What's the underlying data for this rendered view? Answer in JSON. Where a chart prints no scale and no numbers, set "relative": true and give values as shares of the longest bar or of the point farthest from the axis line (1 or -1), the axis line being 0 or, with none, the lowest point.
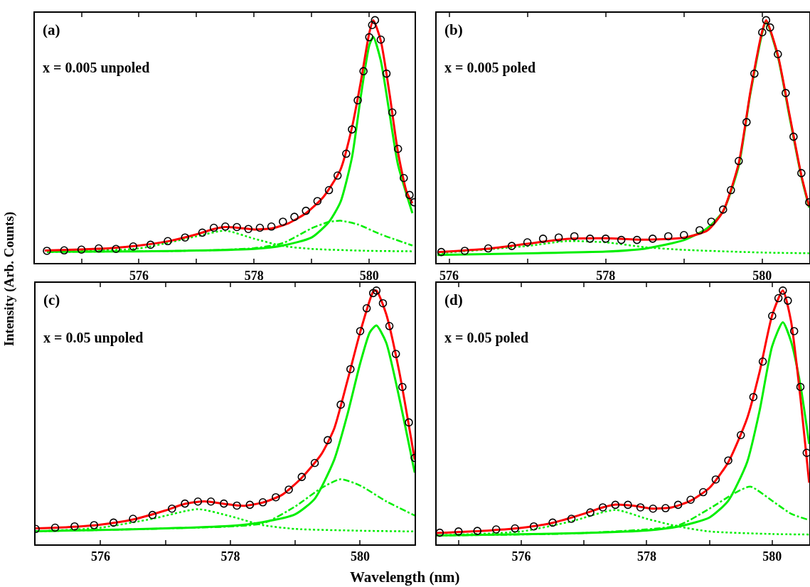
{
  "chart_data": [
    {
      "type": "line",
      "relative": true,
      "tick_labels": "x",
      "ylabel": "Intensity (Arb. Counts)",
      "xlim": [
        574.19,
        580.79
      ],
      "xticks": [
        {
          "value": 575,
          "label": null
        },
        576,
        {
          "value": 577,
          "label": null
        },
        578,
        {
          "value": 579,
          "label": null
        },
        580
      ],
      "annotations": [
        "(a)",
        "x = 0.005 unpoled"
      ],
      "series": [
        {
          "type": "scatter",
          "marker": "circle",
          "color": "#000000",
          "x": [
            574.4,
            574.7,
            575.0,
            575.3,
            575.6,
            575.9,
            576.2,
            576.5,
            576.8,
            577.1,
            577.3,
            577.5,
            577.7,
            577.9,
            578.1,
            578.3,
            578.5,
            578.7,
            578.9,
            579.1,
            579.3,
            579.45,
            579.6,
            579.7,
            579.8,
            579.9,
            580.0,
            580.05,
            580.1,
            580.2,
            580.3,
            580.4,
            580.5,
            580.6,
            580.7,
            580.78
          ],
          "values": [
            0.05,
            0.052,
            0.055,
            0.06,
            0.058,
            0.068,
            0.075,
            0.09,
            0.105,
            0.125,
            0.145,
            0.15,
            0.148,
            0.14,
            0.145,
            0.15,
            0.17,
            0.19,
            0.215,
            0.255,
            0.3,
            0.36,
            0.45,
            0.55,
            0.67,
            0.79,
            0.93,
            0.98,
            1.0,
            0.92,
            0.78,
            0.62,
            0.47,
            0.35,
            0.28,
            0.25
          ]
        },
        {
          "type": "line",
          "line_style": "solid",
          "color": "#00ee00",
          "x": [
            574.4,
            576.0,
            577.0,
            578.0,
            578.5,
            579.0,
            579.3,
            579.5,
            579.7,
            579.85,
            580.0,
            580.07,
            580.2,
            580.35,
            580.5,
            580.75
          ],
          "values": [
            0.046,
            0.048,
            0.051,
            0.058,
            0.072,
            0.105,
            0.169,
            0.251,
            0.435,
            0.681,
            0.896,
            0.931,
            0.834,
            0.619,
            0.404,
            0.205
          ]
        },
        {
          "type": "line",
          "line_style": "dashdot",
          "color": "#00ee00",
          "x": [
            574.4,
            577.0,
            578.0,
            578.5,
            579.0,
            579.3,
            579.5,
            579.8,
            580.2,
            580.75
          ],
          "values": [
            0.046,
            0.051,
            0.061,
            0.082,
            0.143,
            0.169,
            0.174,
            0.159,
            0.118,
            0.072
          ]
        },
        {
          "type": "line",
          "line_style": "dotted",
          "color": "#00ee00",
          "x": [
            574.4,
            576.0,
            577.0,
            577.5,
            578.0,
            578.5,
            579.0,
            580.0,
            580.75
          ],
          "values": [
            0.046,
            0.06,
            0.11,
            0.133,
            0.1,
            0.07,
            0.058,
            0.05,
            0.048
          ]
        },
        {
          "type": "line",
          "line_style": "solid",
          "color": "#ff0000",
          "x": [
            574.36,
            575.0,
            575.5,
            576.0,
            576.5,
            577.0,
            577.3,
            577.5,
            577.8,
            578.0,
            578.3,
            578.6,
            578.9,
            579.2,
            579.5,
            579.7,
            579.85,
            580.0,
            580.07,
            580.2,
            580.35,
            580.5,
            580.65,
            580.75
          ],
          "values": [
            0.051,
            0.056,
            0.061,
            0.072,
            0.089,
            0.118,
            0.14,
            0.148,
            0.143,
            0.138,
            0.142,
            0.164,
            0.205,
            0.271,
            0.384,
            0.558,
            0.742,
            0.947,
            1.0,
            0.916,
            0.701,
            0.455,
            0.292,
            0.246
          ]
        }
      ]
    },
    {
      "type": "line",
      "relative": true,
      "tick_labels": "x",
      "xlim": [
        575.84,
        580.6
      ],
      "xticks": [
        576,
        {
          "value": 577,
          "label": null
        },
        578,
        {
          "value": 579,
          "label": null
        },
        580
      ],
      "annotations": [
        "(b)",
        "x = 0.005 poled"
      ],
      "series": [
        {
          "type": "scatter",
          "marker": "circle",
          "color": "#000000",
          "x": [
            575.9,
            576.2,
            576.5,
            576.8,
            577.0,
            577.2,
            577.4,
            577.6,
            577.8,
            578.0,
            578.2,
            578.4,
            578.6,
            578.8,
            579.0,
            579.2,
            579.35,
            579.5,
            579.6,
            579.7,
            579.8,
            579.9,
            580.0,
            580.05,
            580.1,
            580.2,
            580.3,
            580.4,
            580.5,
            580.6
          ],
          "values": [
            0.045,
            0.05,
            0.06,
            0.07,
            0.085,
            0.1,
            0.105,
            0.11,
            0.1,
            0.1,
            0.095,
            0.095,
            0.1,
            0.11,
            0.115,
            0.135,
            0.17,
            0.22,
            0.3,
            0.42,
            0.58,
            0.78,
            0.95,
            1.0,
            0.97,
            0.86,
            0.7,
            0.52,
            0.37,
            0.25
          ]
        },
        {
          "type": "line",
          "line_style": "solid",
          "color": "#00ee00",
          "x": [
            575.85,
            577.0,
            578.0,
            578.5,
            579.0,
            579.3,
            579.5,
            579.7,
            579.85,
            580.05,
            580.2,
            580.35,
            580.5,
            580.6
          ],
          "values": [
            0.033,
            0.04,
            0.047,
            0.059,
            0.094,
            0.144,
            0.213,
            0.4,
            0.7,
            0.99,
            0.85,
            0.6,
            0.355,
            0.228
          ]
        },
        {
          "type": "line",
          "line_style": "dotted",
          "color": "#00ee00",
          "x": [
            575.85,
            577.0,
            577.5,
            578.0,
            578.5,
            579.0,
            580.0,
            580.6
          ],
          "values": [
            0.04,
            0.07,
            0.09,
            0.085,
            0.065,
            0.054,
            0.043,
            0.04
          ]
        },
        {
          "type": "line",
          "line_style": "solid",
          "color": "#ff0000",
          "x": [
            575.85,
            576.5,
            577.0,
            577.5,
            578.0,
            578.5,
            579.0,
            579.3,
            579.5,
            579.7,
            579.85,
            580.0,
            580.05,
            580.2,
            580.35,
            580.5,
            580.6
          ],
          "values": [
            0.045,
            0.059,
            0.079,
            0.099,
            0.102,
            0.096,
            0.104,
            0.134,
            0.213,
            0.411,
            0.708,
            0.955,
            1.0,
            0.856,
            0.609,
            0.361,
            0.233
          ]
        }
      ]
    },
    {
      "type": "line",
      "relative": true,
      "tick_labels": "x",
      "xlabel": "Wavelength (nm)",
      "xlim": [
        575.0,
        580.84
      ],
      "xticks": [
        576,
        {
          "value": 577,
          "label": null
        },
        578,
        {
          "value": 579,
          "label": null
        },
        580
      ],
      "annotations": [
        "(c)",
        "x = 0.05 unpoled"
      ],
      "series": [
        {
          "type": "scatter",
          "marker": "circle",
          "color": "#000000",
          "x": [
            575.0,
            575.3,
            575.6,
            575.9,
            576.2,
            576.5,
            576.8,
            577.1,
            577.3,
            577.5,
            577.7,
            577.9,
            578.1,
            578.3,
            578.5,
            578.7,
            578.9,
            579.1,
            579.3,
            579.5,
            579.7,
            579.85,
            580.0,
            580.1,
            580.2,
            580.25,
            580.35,
            580.45,
            580.55,
            580.65,
            580.75,
            580.84
          ],
          "values": [
            0.06,
            0.065,
            0.07,
            0.075,
            0.085,
            0.1,
            0.115,
            0.14,
            0.16,
            0.168,
            0.168,
            0.16,
            0.152,
            0.155,
            0.165,
            0.185,
            0.215,
            0.265,
            0.32,
            0.41,
            0.55,
            0.69,
            0.84,
            0.93,
            0.99,
            1.0,
            0.95,
            0.86,
            0.75,
            0.62,
            0.48,
            0.34
          ]
        },
        {
          "type": "line",
          "line_style": "solid",
          "color": "#00ee00",
          "x": [
            575.0,
            576.0,
            577.0,
            578.0,
            578.5,
            579.0,
            579.3,
            579.6,
            579.8,
            580.0,
            580.15,
            580.25,
            580.4,
            580.6,
            580.84
          ],
          "values": [
            0.051,
            0.056,
            0.062,
            0.072,
            0.087,
            0.118,
            0.179,
            0.333,
            0.508,
            0.713,
            0.836,
            0.862,
            0.795,
            0.579,
            0.282
          ]
        },
        {
          "type": "line",
          "line_style": "dashdot",
          "color": "#00ee00",
          "x": [
            575.0,
            577.0,
            578.5,
            579.0,
            579.4,
            579.7,
            580.0,
            580.4,
            580.84
          ],
          "values": [
            0.051,
            0.062,
            0.082,
            0.149,
            0.221,
            0.256,
            0.231,
            0.169,
            0.113
          ]
        },
        {
          "type": "line",
          "line_style": "dotted",
          "color": "#00ee00",
          "x": [
            575.0,
            576.0,
            576.8,
            577.5,
            578.0,
            578.5,
            579.0,
            580.0,
            580.84
          ],
          "values": [
            0.05,
            0.065,
            0.1,
            0.138,
            0.11,
            0.075,
            0.06,
            0.053,
            0.05
          ]
        },
        {
          "type": "line",
          "line_style": "solid",
          "color": "#ff0000",
          "x": [
            575.0,
            575.5,
            576.0,
            576.5,
            577.0,
            577.3,
            577.6,
            577.9,
            578.2,
            578.5,
            578.8,
            579.1,
            579.4,
            579.6,
            579.8,
            580.0,
            580.2,
            580.25,
            580.4,
            580.6,
            580.84
          ],
          "values": [
            0.062,
            0.067,
            0.077,
            0.097,
            0.133,
            0.159,
            0.169,
            0.159,
            0.151,
            0.164,
            0.195,
            0.262,
            0.354,
            0.456,
            0.641,
            0.836,
            0.995,
            1.0,
            0.908,
            0.682,
            0.333
          ]
        }
      ]
    },
    {
      "type": "line",
      "relative": true,
      "tick_labels": "x",
      "xlim": [
        574.65,
        580.59
      ],
      "xticks": [
        {
          "value": 575,
          "label": null
        },
        576,
        {
          "value": 577,
          "label": null
        },
        578,
        {
          "value": 579,
          "label": null
        },
        580
      ],
      "annotations": [
        "(d)",
        "x = 0.05 poled"
      ],
      "series": [
        {
          "type": "scatter",
          "marker": "circle",
          "color": "#000000",
          "x": [
            574.7,
            575.0,
            575.3,
            575.6,
            575.9,
            576.2,
            576.5,
            576.8,
            577.1,
            577.3,
            577.5,
            577.7,
            577.9,
            578.1,
            578.3,
            578.5,
            578.7,
            578.9,
            579.1,
            579.3,
            579.5,
            579.7,
            579.85,
            580.0,
            580.1,
            580.17,
            580.25,
            580.35,
            580.45,
            580.55
          ],
          "values": [
            0.045,
            0.05,
            0.052,
            0.058,
            0.062,
            0.07,
            0.085,
            0.1,
            0.125,
            0.145,
            0.155,
            0.155,
            0.145,
            0.14,
            0.142,
            0.155,
            0.175,
            0.205,
            0.255,
            0.33,
            0.43,
            0.58,
            0.72,
            0.9,
            0.97,
            1.0,
            0.96,
            0.84,
            0.62,
            0.36
          ]
        },
        {
          "type": "line",
          "line_style": "solid",
          "color": "#00ee00",
          "x": [
            574.65,
            576.0,
            577.0,
            578.0,
            578.5,
            579.0,
            579.3,
            579.6,
            579.8,
            580.0,
            580.17,
            580.3,
            580.45,
            580.59
          ],
          "values": [
            0.034,
            0.039,
            0.044,
            0.054,
            0.069,
            0.105,
            0.171,
            0.323,
            0.527,
            0.781,
            0.875,
            0.8,
            0.627,
            0.395
          ]
        },
        {
          "type": "line",
          "line_style": "dashdot",
          "color": "#00ee00",
          "x": [
            574.65,
            577.0,
            578.5,
            579.0,
            579.4,
            579.65,
            580.0,
            580.3,
            580.59
          ],
          "values": [
            0.034,
            0.044,
            0.074,
            0.14,
            0.201,
            0.227,
            0.171,
            0.12,
            0.095
          ]
        },
        {
          "type": "line",
          "line_style": "dotted",
          "color": "#00ee00",
          "x": [
            574.65,
            576.0,
            576.8,
            577.5,
            578.0,
            578.5,
            579.0,
            580.0,
            580.59
          ],
          "values": [
            0.035,
            0.05,
            0.09,
            0.135,
            0.1,
            0.07,
            0.05,
            0.04,
            0.038
          ]
        },
        {
          "type": "line",
          "line_style": "solid",
          "color": "#ff0000",
          "x": [
            574.65,
            575.5,
            576.0,
            576.5,
            577.0,
            577.3,
            577.5,
            577.8,
            578.1,
            578.4,
            578.7,
            579.0,
            579.3,
            579.6,
            579.8,
            580.0,
            580.17,
            580.3,
            580.45,
            580.59
          ],
          "values": [
            0.044,
            0.054,
            0.064,
            0.084,
            0.12,
            0.145,
            0.156,
            0.151,
            0.14,
            0.145,
            0.171,
            0.222,
            0.323,
            0.496,
            0.68,
            0.903,
            1.0,
            0.88,
            0.578,
            0.242
          ]
        }
      ]
    }
  ]
}
